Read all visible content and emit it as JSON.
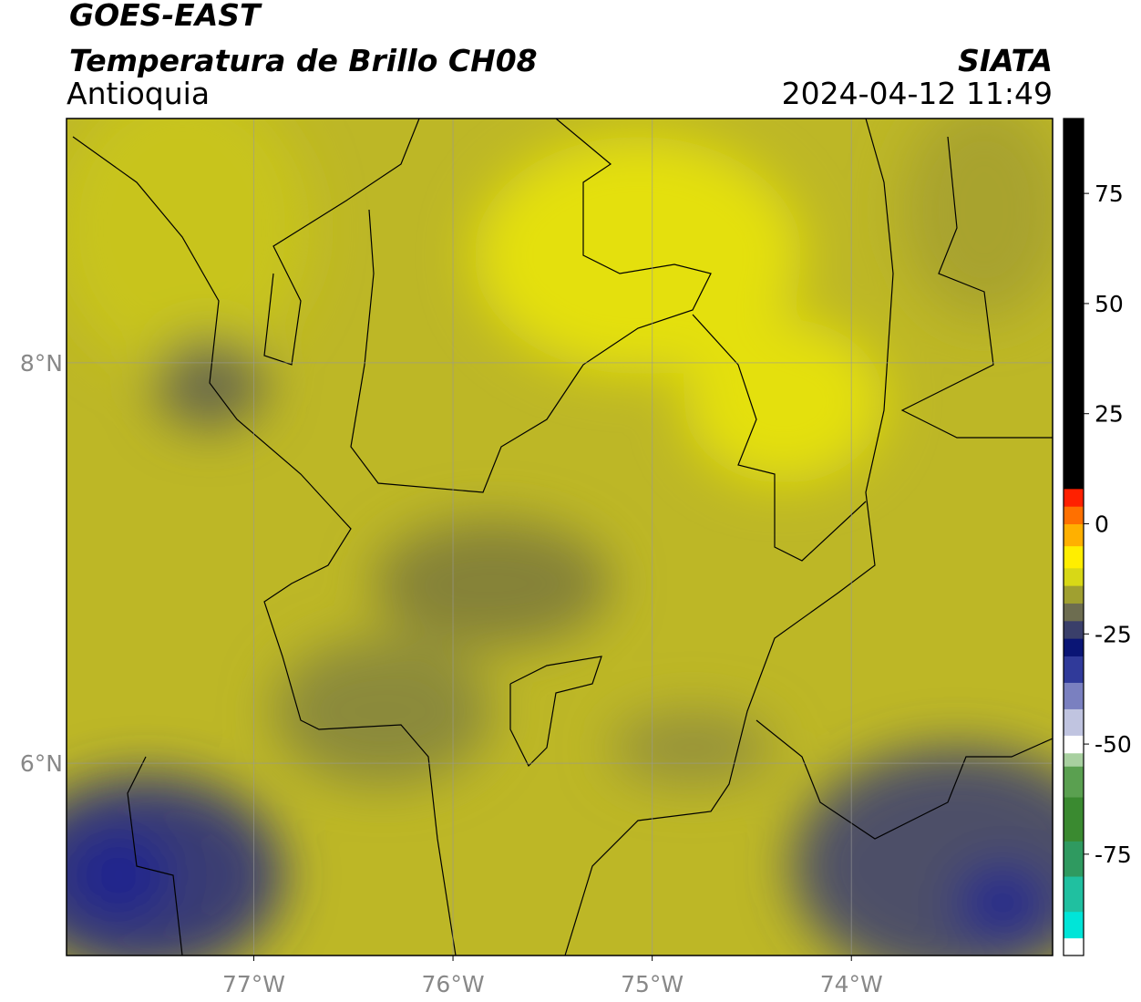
{
  "header": {
    "title": "GOES-EAST",
    "subtitle": "Temperatura de Brillo CH08",
    "region": "Antioquia",
    "source": "SIATA",
    "datetime": "2024-04-12 11:49"
  },
  "map": {
    "xlim": [
      -77.94,
      -72.99
    ],
    "ylim": [
      5.04,
      9.22
    ],
    "xticks": [
      {
        "value": -77,
        "label": "77°W"
      },
      {
        "value": -76,
        "label": "76°W"
      },
      {
        "value": -75,
        "label": "75°W"
      },
      {
        "value": -74,
        "label": "74°W"
      }
    ],
    "yticks": [
      {
        "value": 6,
        "label": "6°N"
      },
      {
        "value": 8,
        "label": "8°N"
      }
    ],
    "grid": true
  },
  "colorbar": {
    "lim": [
      -98,
      92
    ],
    "ticks": [
      75,
      50,
      25,
      0,
      -25,
      -50,
      -75
    ],
    "bands": [
      {
        "from": -98,
        "to": -94,
        "color": "#ffffff"
      },
      {
        "from": -94,
        "to": -88,
        "color": "#00e5d8"
      },
      {
        "from": -88,
        "to": -80,
        "color": "#20c0a0"
      },
      {
        "from": -80,
        "to": -72,
        "color": "#2f9a60"
      },
      {
        "from": -72,
        "to": -62,
        "color": "#3a8a30"
      },
      {
        "from": -62,
        "to": -55,
        "color": "#5aa050"
      },
      {
        "from": -55,
        "to": -52,
        "color": "#a8d0a0"
      },
      {
        "from": -52,
        "to": -48,
        "color": "#ffffff"
      },
      {
        "from": -48,
        "to": -42,
        "color": "#c0c4e0"
      },
      {
        "from": -42,
        "to": -36,
        "color": "#7a80c0"
      },
      {
        "from": -36,
        "to": -30,
        "color": "#303a9a"
      },
      {
        "from": -30,
        "to": -26,
        "color": "#0a1575"
      },
      {
        "from": -26,
        "to": -22,
        "color": "#3a3f6a"
      },
      {
        "from": -22,
        "to": -18,
        "color": "#6d6d50"
      },
      {
        "from": -18,
        "to": -14,
        "color": "#a0a030"
      },
      {
        "from": -14,
        "to": -10,
        "color": "#d8d816"
      },
      {
        "from": -10,
        "to": -5,
        "color": "#ffee00"
      },
      {
        "from": -5,
        "to": 0,
        "color": "#ffb000"
      },
      {
        "from": 0,
        "to": 4,
        "color": "#ff7000"
      },
      {
        "from": 4,
        "to": 8,
        "color": "#ff2000"
      },
      {
        "from": 8,
        "to": 92,
        "color": "#000000"
      }
    ]
  }
}
